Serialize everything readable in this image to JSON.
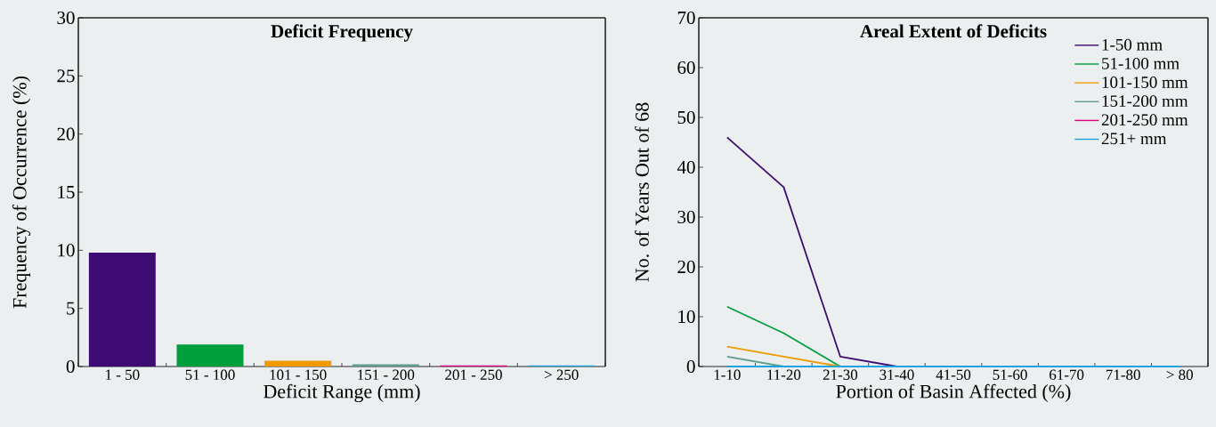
{
  "chart_data": [
    {
      "type": "bar",
      "title": "Deficit Frequency",
      "xlabel": "Deficit Range (mm)",
      "ylabel": "Frequency of Occurrence (%)",
      "categories": [
        "1 - 50",
        "51 - 100",
        "101 - 150",
        "151 - 200",
        "201 - 250",
        "> 250"
      ],
      "values": [
        9.8,
        1.9,
        0.5,
        0.2,
        0.1,
        0.1
      ],
      "colors": [
        "#3d0b72",
        "#009e3c",
        "#f09a00",
        "#5f9e8a",
        "#e0007a",
        "#1aa5e0"
      ],
      "ylim": [
        0,
        30
      ],
      "yticks": [
        0,
        5,
        10,
        15,
        20,
        25,
        30
      ]
    },
    {
      "type": "line",
      "title": "Areal Extent of Deficits",
      "xlabel": "Portion of Basin Affected (%)",
      "ylabel": "No. of Years Out of 68",
      "categories": [
        "1-10",
        "11-20",
        "21-30",
        "31-40",
        "41-50",
        "51-60",
        "61-70",
        "71-80",
        "> 80"
      ],
      "series": [
        {
          "name": "1-50 mm",
          "color": "#3d0b72",
          "values": [
            46,
            36,
            2,
            0,
            null,
            null,
            null,
            null,
            null
          ]
        },
        {
          "name": "51-100 mm",
          "color": "#009e3c",
          "values": [
            12,
            6.7,
            0,
            null,
            null,
            null,
            null,
            null,
            null
          ]
        },
        {
          "name": "101-150 mm",
          "color": "#f09a00",
          "values": [
            4,
            2,
            0,
            null,
            null,
            null,
            null,
            null,
            null
          ]
        },
        {
          "name": "151-200 mm",
          "color": "#5f9e8a",
          "values": [
            2,
            0,
            null,
            null,
            null,
            null,
            null,
            null,
            null
          ]
        },
        {
          "name": "201-250 mm",
          "color": "#e0007a",
          "values": [
            null,
            null,
            null,
            null,
            null,
            null,
            null,
            null,
            null
          ]
        },
        {
          "name": "251+ mm",
          "color": "#1aa5e0",
          "values": [
            0,
            0,
            0,
            0,
            0,
            0,
            0,
            0,
            0
          ]
        }
      ],
      "ylim": [
        0,
        70
      ],
      "yticks": [
        0,
        10,
        20,
        30,
        40,
        50,
        60,
        70
      ],
      "legend": "top right"
    }
  ]
}
